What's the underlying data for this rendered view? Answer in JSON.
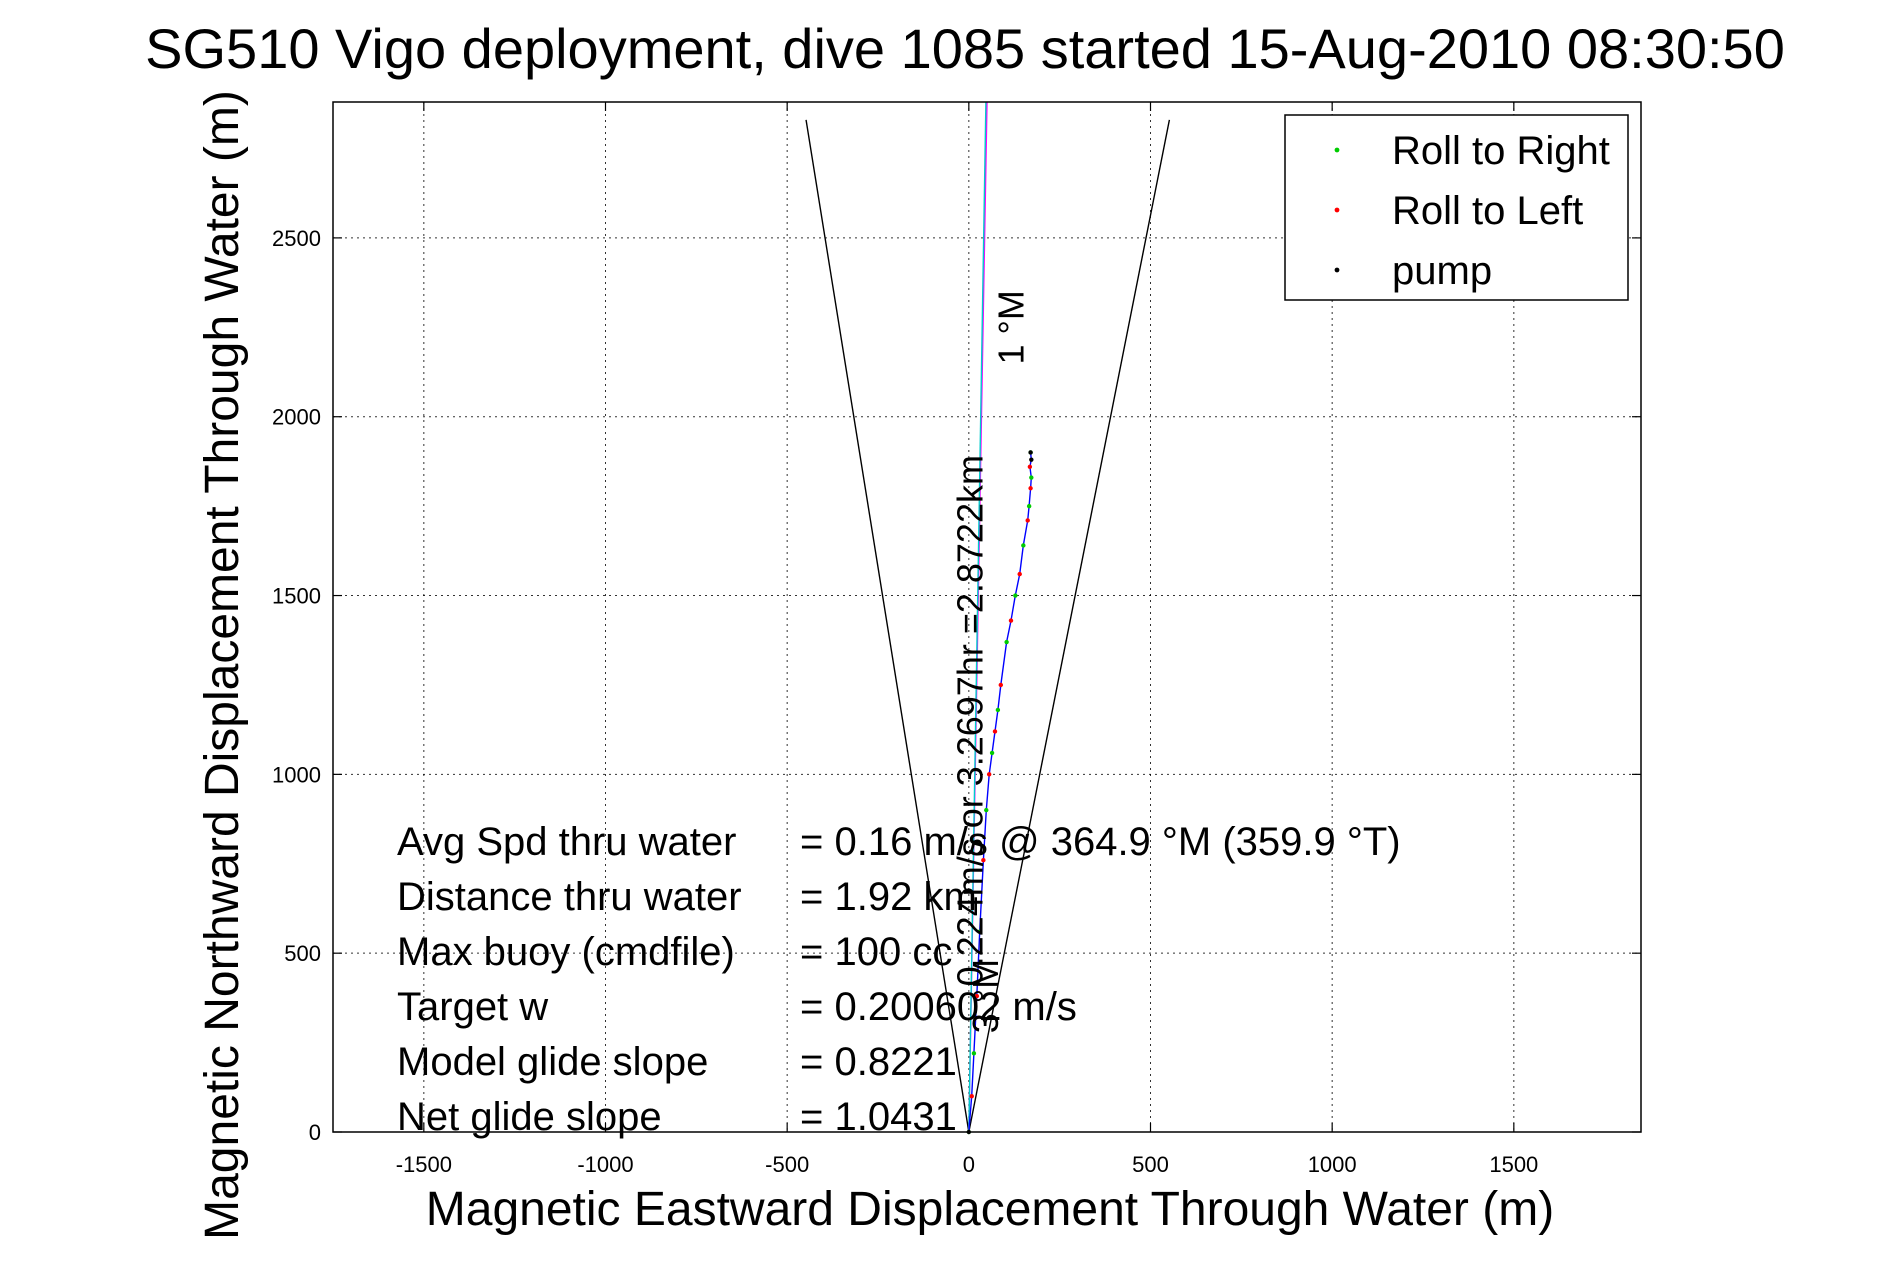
{
  "chart_data": {
    "type": "line",
    "title": "SG510 Vigo deployment, dive 1085 started 15-Aug-2010 08:30:50",
    "xlabel": "Magnetic Eastward Displacement Through Water (m)",
    "ylabel": "Magnetic Northward Displacement Through Water (m)",
    "xlim": [
      -1750,
      1850
    ],
    "ylim": [
      0,
      2880
    ],
    "xticks": [
      "-1500",
      "-1000",
      "-500",
      "0",
      "500",
      "1000",
      "1500"
    ],
    "xtick_values": [
      -1500,
      -1000,
      -500,
      0,
      500,
      1000,
      1500
    ],
    "yticks": [
      "0",
      "500",
      "1000",
      "1500",
      "2000",
      "2500"
    ],
    "ytick_values": [
      0,
      500,
      1000,
      1500,
      2000,
      2500
    ],
    "grid": true,
    "legend_position": "top-right",
    "series": [
      {
        "name": "track",
        "style": "line",
        "color": "#0000ff",
        "x": [
          0,
          8,
          14,
          22,
          30,
          40,
          48,
          56,
          64,
          72,
          80,
          88,
          96,
          104,
          116,
          128,
          140,
          150,
          162,
          166,
          170,
          172,
          168,
          172,
          170
        ],
        "y": [
          0,
          100,
          220,
          380,
          560,
          760,
          900,
          1000,
          1060,
          1120,
          1180,
          1250,
          1310,
          1370,
          1430,
          1500,
          1560,
          1640,
          1710,
          1750,
          1800,
          1830,
          1860,
          1880,
          1900
        ]
      },
      {
        "name": "Roll to Right",
        "style": "points",
        "color": "#00cc00",
        "x": [
          0,
          14,
          30,
          48,
          64,
          80,
          104,
          128,
          150,
          166,
          172,
          170
        ],
        "y": [
          0,
          220,
          560,
          900,
          1060,
          1180,
          1370,
          1500,
          1640,
          1750,
          1830,
          1900
        ]
      },
      {
        "name": "Roll to Left",
        "style": "points",
        "color": "#ff0000",
        "x": [
          8,
          22,
          40,
          56,
          72,
          88,
          116,
          140,
          162,
          170,
          168
        ],
        "y": [
          100,
          380,
          760,
          1000,
          1120,
          1250,
          1430,
          1560,
          1710,
          1800,
          1860
        ]
      },
      {
        "name": "pump",
        "style": "points",
        "color": "#000000",
        "x": [
          0,
          172,
          170
        ],
        "y": [
          0,
          1880,
          1900
        ]
      }
    ],
    "reference_lines": [
      {
        "name": "cone-left",
        "color": "#000000",
        "x": [
          0,
          -448
        ],
        "y": [
          0,
          2830
        ]
      },
      {
        "name": "cone-right",
        "color": "#000000",
        "x": [
          0,
          552
        ],
        "y": [
          0,
          2830
        ]
      },
      {
        "name": "heading-magenta",
        "color": "#ff00ff",
        "x": [
          0,
          50
        ],
        "y": [
          0,
          2880
        ]
      },
      {
        "name": "heading-cyan",
        "color": "#00cccc",
        "x": [
          0,
          47
        ],
        "y": [
          0,
          2880
        ]
      }
    ],
    "annotations": [
      {
        "text": "1 °M",
        "x": 150,
        "y": 2250,
        "rotate": -90
      },
      {
        "text": "0.224m/s or 3.2697hr =2.8722km",
        "x": 38,
        "y": 1150,
        "rotate": -90
      },
      {
        "text": "3 °M",
        "x": 80,
        "y": 380,
        "rotate": -90
      }
    ],
    "stats": [
      {
        "label": "Avg Spd thru water",
        "value": "=  0.16 m/s @ 364.9 °M (359.9 °T)"
      },
      {
        "label": "Distance thru water",
        "value": "=  1.92 km"
      },
      {
        "label": "Max buoy (cmdfile)",
        "value": "= 100 cc"
      },
      {
        "label": "Target w",
        "value": "= 0.200602 m/s"
      },
      {
        "label": "Model glide slope",
        "value": "= 0.8221"
      },
      {
        "label": "Net glide slope",
        "value": "= 1.0431"
      }
    ]
  },
  "legend": {
    "items": [
      {
        "label": "Roll to Right",
        "color": "#00cc00"
      },
      {
        "label": "Roll to Left",
        "color": "#ff0000"
      },
      {
        "label": "pump",
        "color": "#000000"
      }
    ]
  }
}
